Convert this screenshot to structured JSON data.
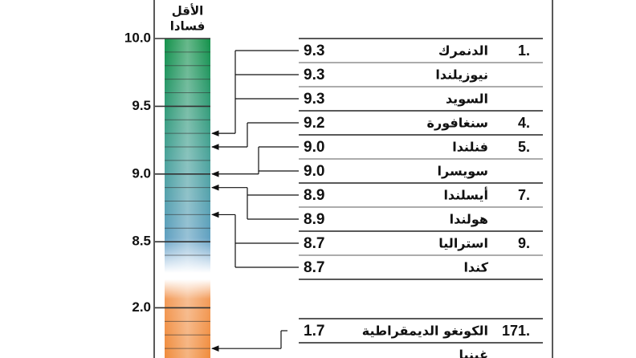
{
  "chart_data": [
    {
      "type": "scale",
      "header": [
        "الأقل",
        "فسادا"
      ],
      "categories": [
        "الدنمرك",
        "نيوزيلندا",
        "السويد",
        "سنغافورة",
        "فنلندا",
        "سويسرا",
        "أيسلندا",
        "هولندا",
        "استراليا",
        "كندا"
      ],
      "values": [
        9.3,
        9.3,
        9.3,
        9.2,
        9.0,
        9.0,
        8.9,
        8.9,
        8.7,
        8.7
      ],
      "value_labels": [
        "9.3",
        "9.3",
        "9.3",
        "9.2",
        "9.0",
        "9.0",
        "8.9",
        "8.9",
        "8.7",
        "8.7"
      ],
      "ranks": [
        "1.",
        null,
        null,
        "4.",
        "5.",
        null,
        "7.",
        null,
        "9.",
        null
      ],
      "ylim": [
        8.27,
        10.0
      ],
      "yticks": [
        {
          "value": 8.5,
          "label": "8.5"
        },
        {
          "value": 9.0,
          "label": "9.0"
        },
        9.5,
        {
          "value": 10.0,
          "label": "10.0"
        }
      ],
      "minor_ticks": [
        9.9,
        9.8,
        9.7,
        9.6,
        9.4,
        9.3,
        9.2,
        9.1,
        8.9,
        8.8,
        8.7,
        8.6,
        8.4
      ],
      "colors": [
        "#14924a",
        "#4aa39a",
        "#6a9fd2"
      ]
    },
    {
      "type": "scale",
      "categories": [
        "الكونغو الديمقراطية",
        "غينيا"
      ],
      "values": [
        1.7,
        null
      ],
      "value_labels": [
        "1.7",
        null
      ],
      "ranks": [
        "171.",
        null
      ],
      "ylim": [
        1.63,
        2.21
      ],
      "yticks": [
        {
          "value": 2.0,
          "label": "2.0"
        }
      ],
      "minor_ticks": [
        1.9,
        1.8,
        1.7
      ],
      "colors": [
        "#f4a062",
        "#f08c3c"
      ]
    }
  ]
}
